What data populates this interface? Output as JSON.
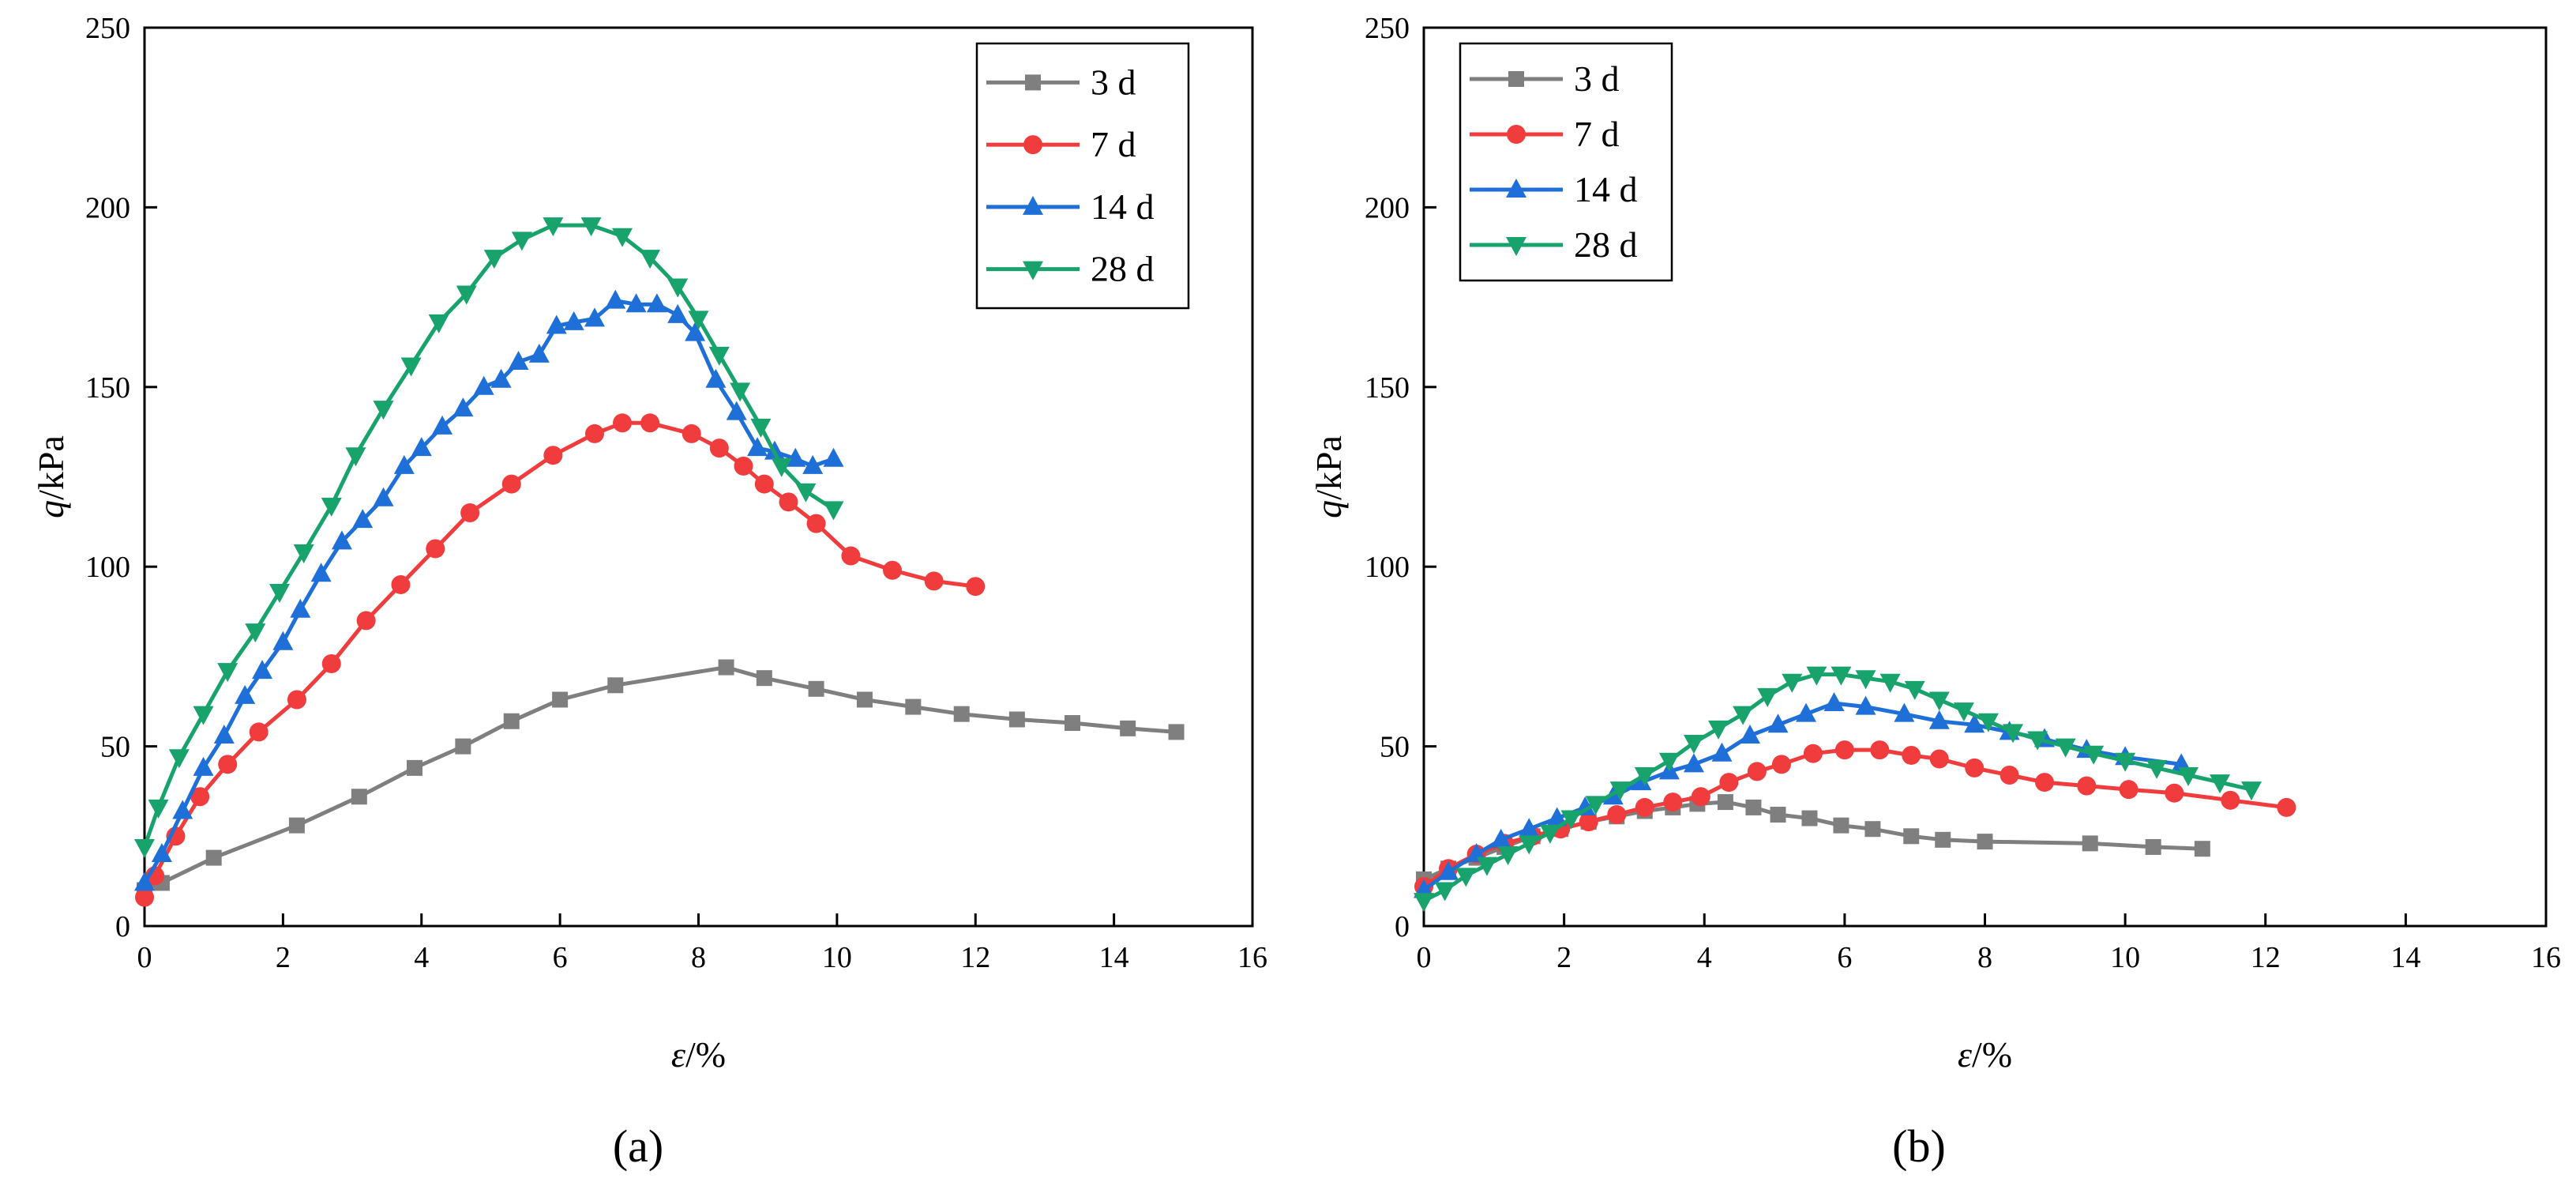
{
  "chart_data": [
    {
      "type": "line",
      "panel_label": "(a)",
      "xlabel": "ε/%",
      "ylabel": "q/kPa",
      "xlim": [
        0,
        16
      ],
      "ylim": [
        0,
        250
      ],
      "xticks": [
        0,
        2,
        4,
        6,
        8,
        10,
        12,
        14,
        16
      ],
      "yticks": [
        0,
        50,
        100,
        150,
        200,
        250
      ],
      "legend_position": "top-right",
      "grid": false,
      "series": [
        {
          "name": "3 d",
          "color": "#7f7f7f",
          "marker": "square",
          "x": [
            0,
            0.25,
            1.0,
            2.2,
            3.1,
            3.9,
            4.6,
            5.3,
            6.0,
            6.8,
            8.4,
            8.95,
            9.7,
            10.4,
            11.1,
            11.8,
            12.6,
            13.4,
            14.2,
            14.9
          ],
          "y": [
            10,
            12,
            19,
            28,
            36,
            44,
            50,
            57,
            63,
            67,
            72,
            69,
            66,
            63,
            61,
            59,
            57.5,
            56.5,
            55,
            54
          ]
        },
        {
          "name": "7 d",
          "color": "#f03c3c",
          "marker": "circle",
          "x": [
            0,
            0.15,
            0.45,
            0.8,
            1.2,
            1.65,
            2.2,
            2.7,
            3.2,
            3.7,
            4.2,
            4.7,
            5.3,
            5.9,
            6.5,
            6.9,
            7.3,
            7.9,
            8.3,
            8.65,
            8.95,
            9.3,
            9.7,
            10.2,
            10.8,
            11.4,
            12.0
          ],
          "y": [
            8,
            14,
            25,
            36,
            45,
            54,
            63,
            73,
            85,
            95,
            105,
            115,
            123,
            131,
            137,
            140,
            140,
            137,
            133,
            128,
            123,
            118,
            112,
            103,
            99,
            96,
            94.5
          ]
        },
        {
          "name": "14 d",
          "color": "#1f6fd8",
          "marker": "triangle-up",
          "x": [
            0,
            0.25,
            0.55,
            0.85,
            1.15,
            1.45,
            1.7,
            2.0,
            2.25,
            2.55,
            2.85,
            3.15,
            3.45,
            3.75,
            4.0,
            4.3,
            4.6,
            4.9,
            5.15,
            5.4,
            5.7,
            5.95,
            6.2,
            6.5,
            6.8,
            7.1,
            7.4,
            7.7,
            7.95,
            8.25,
            8.55,
            8.85,
            9.1,
            9.4,
            9.65,
            9.95
          ],
          "y": [
            12,
            20,
            32,
            44,
            53,
            64,
            71,
            79,
            88,
            98,
            107,
            113,
            119,
            128,
            133,
            139,
            144,
            150,
            152,
            157,
            159,
            167,
            168,
            169,
            174,
            173,
            173,
            170,
            165,
            152,
            143,
            133,
            132,
            130,
            128,
            130
          ]
        },
        {
          "name": "28 d",
          "color": "#17a36b",
          "marker": "triangle-down",
          "x": [
            0,
            0.2,
            0.5,
            0.85,
            1.2,
            1.6,
            1.95,
            2.3,
            2.7,
            3.05,
            3.45,
            3.85,
            4.25,
            4.65,
            5.05,
            5.45,
            5.9,
            6.45,
            6.9,
            7.3,
            7.7,
            8.0,
            8.3,
            8.6,
            8.9,
            9.2,
            9.55,
            9.95
          ],
          "y": [
            22,
            33,
            47,
            59,
            71,
            82,
            93,
            104,
            117,
            131,
            144,
            156,
            168,
            176,
            186,
            191,
            195,
            195,
            192,
            186,
            178,
            169,
            159,
            149,
            139,
            128,
            121,
            116
          ]
        }
      ]
    },
    {
      "type": "line",
      "panel_label": "(b)",
      "xlabel": "ε/%",
      "ylabel": "q/kPa",
      "xlim": [
        0,
        16
      ],
      "ylim": [
        0,
        250
      ],
      "xticks": [
        0,
        2,
        4,
        6,
        8,
        10,
        12,
        14,
        16
      ],
      "yticks": [
        0,
        50,
        100,
        150,
        200,
        250
      ],
      "legend_position": "top-left",
      "grid": false,
      "series": [
        {
          "name": "3 d",
          "color": "#7f7f7f",
          "marker": "square",
          "x": [
            0,
            0.35,
            0.75,
            1.15,
            1.55,
            1.95,
            2.35,
            2.75,
            3.15,
            3.55,
            3.9,
            4.3,
            4.7,
            5.05,
            5.5,
            5.95,
            6.4,
            6.95,
            7.4,
            8.0,
            9.5,
            10.4,
            11.1
          ],
          "y": [
            13,
            16,
            19,
            22,
            25,
            27,
            29,
            30.5,
            32,
            33,
            34,
            34.5,
            33,
            31,
            30,
            28,
            27,
            25,
            24,
            23.5,
            23,
            22,
            21.5
          ]
        },
        {
          "name": "7 d",
          "color": "#f03c3c",
          "marker": "circle",
          "x": [
            0,
            0.35,
            0.75,
            1.15,
            1.55,
            1.95,
            2.35,
            2.75,
            3.15,
            3.55,
            3.95,
            4.35,
            4.75,
            5.1,
            5.55,
            6.0,
            6.5,
            6.95,
            7.35,
            7.85,
            8.35,
            8.85,
            9.45,
            10.05,
            10.7,
            11.5,
            12.3
          ],
          "y": [
            11,
            16,
            20,
            23,
            25,
            27,
            29,
            31,
            33,
            34.5,
            36,
            40,
            43,
            45,
            48,
            49,
            49,
            47.5,
            46.5,
            44,
            42,
            40,
            39,
            38,
            37,
            35,
            33
          ]
        },
        {
          "name": "14 d",
          "color": "#1f6fd8",
          "marker": "triangle-up",
          "x": [
            0,
            0.35,
            0.75,
            1.1,
            1.5,
            1.9,
            2.3,
            2.7,
            3.1,
            3.5,
            3.85,
            4.25,
            4.65,
            5.05,
            5.45,
            5.85,
            6.3,
            6.85,
            7.35,
            7.85,
            8.35,
            8.85,
            9.45,
            10.0,
            10.8
          ],
          "y": [
            10,
            15,
            20,
            24,
            27,
            30,
            33,
            36,
            40,
            43,
            45,
            48,
            53,
            56,
            59,
            62,
            61,
            59,
            57,
            56,
            54,
            52,
            49,
            47,
            45
          ]
        },
        {
          "name": "28 d",
          "color": "#17a36b",
          "marker": "triangle-down",
          "x": [
            0,
            0.3,
            0.6,
            0.9,
            1.2,
            1.5,
            1.8,
            2.1,
            2.45,
            2.8,
            3.15,
            3.5,
            3.85,
            4.2,
            4.55,
            4.9,
            5.25,
            5.6,
            5.95,
            6.3,
            6.65,
            7.0,
            7.35,
            7.7,
            8.05,
            8.4,
            8.75,
            9.15,
            9.55,
            10.0,
            10.45,
            10.9,
            11.35,
            11.8
          ],
          "y": [
            7,
            10,
            14,
            17,
            20,
            23,
            26,
            30,
            34,
            38,
            42,
            46,
            51,
            55,
            59,
            64,
            68,
            70,
            70,
            69,
            68,
            66,
            63,
            60,
            57,
            54,
            52,
            50,
            48,
            46,
            44,
            42,
            40,
            38
          ]
        }
      ]
    }
  ]
}
